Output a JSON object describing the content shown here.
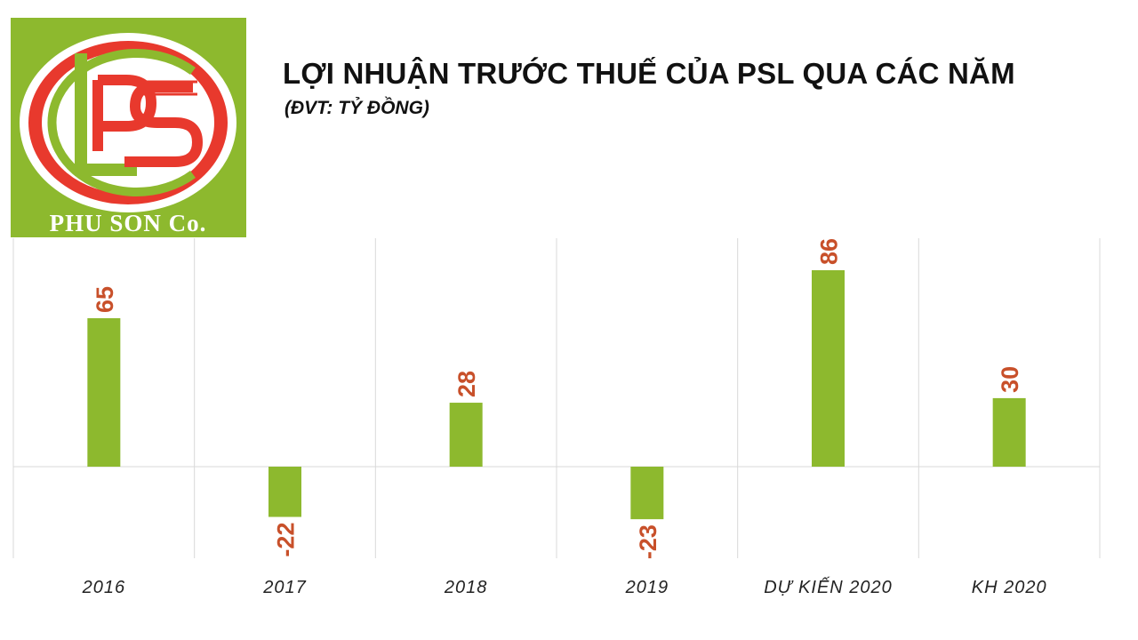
{
  "logo": {
    "text": "PHU SON Co.",
    "bg_color": "#8DB92E",
    "ring_color": "#E8392D"
  },
  "colors": {
    "bar": "#8DB92E",
    "value_label": "#C8502A",
    "grid": "#D9D9D9"
  },
  "chart_data": {
    "type": "bar",
    "title": "LỢI NHUẬN TRƯỚC THUẾ CỦA PSL QUA CÁC NĂM",
    "subtitle": "(ĐVT: TỶ ĐỒNG)",
    "categories": [
      "2016",
      "2017",
      "2018",
      "2019",
      "DỰ KIẾN 2020",
      "KH 2020"
    ],
    "values": [
      65,
      -22,
      28,
      -23,
      86,
      30
    ],
    "ylim": [
      -40,
      100
    ],
    "grid": "vertical-category-separators",
    "legend": "none",
    "data_labels": "rotated-vertical"
  }
}
